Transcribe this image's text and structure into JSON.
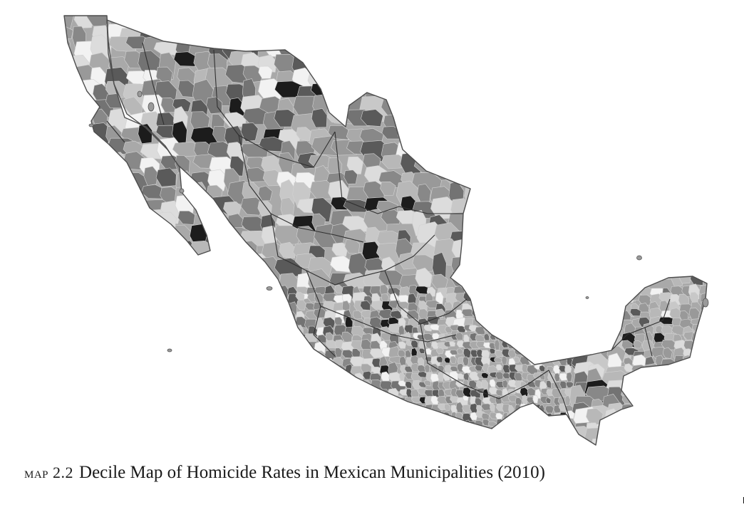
{
  "caption": {
    "label": "map 2.2",
    "title": "Decile Map of Homicide Rates in Mexican Municipalities (2010)"
  },
  "map": {
    "subject": "Mexico, municipalities shaded by homicide-rate decile",
    "palette": [
      "#f2f2f2",
      "#dcdcdc",
      "#c8c8c8",
      "#b8b8b8",
      "#a9a9a9",
      "#999999",
      "#888888",
      "#737373",
      "#5a5a5a",
      "#1c1c1c"
    ]
  }
}
